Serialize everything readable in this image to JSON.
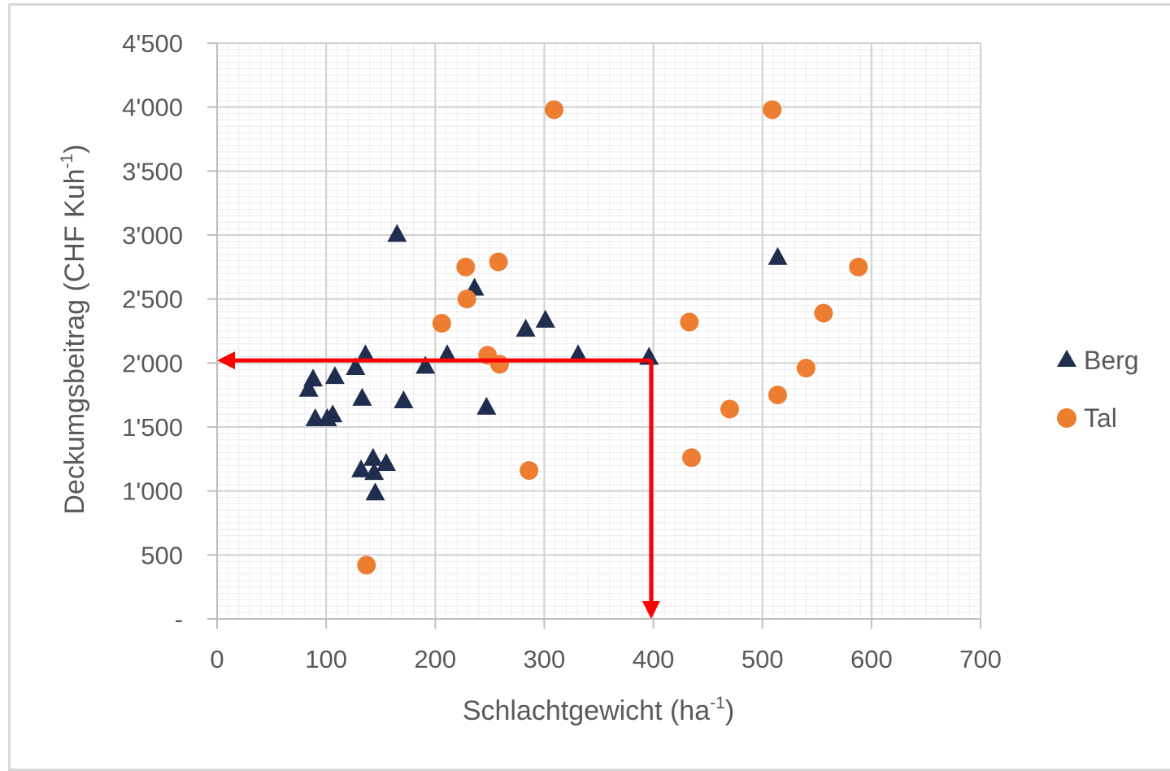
{
  "chart_data": {
    "type": "scatter",
    "xlabel": "Schlachtgewicht (ha",
    "xlabel_sup": "-1",
    "xlabel_end": ")",
    "ylabel": "Deckumgsbeitrag  (CHF Kuh",
    "ylabel_sup": "-1",
    "ylabel_end": ")",
    "xlim": [
      0,
      700
    ],
    "ylim": [
      0,
      4500
    ],
    "x_ticks": [
      {
        "value": 0,
        "label": "0"
      },
      {
        "value": 100,
        "label": "100"
      },
      {
        "value": 200,
        "label": "200"
      },
      {
        "value": 300,
        "label": "300"
      },
      {
        "value": 400,
        "label": "400"
      },
      {
        "value": 500,
        "label": "500"
      },
      {
        "value": 600,
        "label": "600"
      },
      {
        "value": 700,
        "label": "700"
      }
    ],
    "y_ticks": [
      {
        "value": 0,
        "label": "-"
      },
      {
        "value": 500,
        "label": "500"
      },
      {
        "value": 1000,
        "label": "1'000"
      },
      {
        "value": 1500,
        "label": "1'500"
      },
      {
        "value": 2000,
        "label": "2'000"
      },
      {
        "value": 2500,
        "label": "2'500"
      },
      {
        "value": 3000,
        "label": "3'000"
      },
      {
        "value": 3500,
        "label": "3'500"
      },
      {
        "value": 4000,
        "label": "4'000"
      },
      {
        "value": 4500,
        "label": "4'500"
      }
    ],
    "grid": true,
    "minor_grid": true,
    "legend_position": "right",
    "series": [
      {
        "name": "Berg",
        "marker": "triangle",
        "color": "#1f2d4e",
        "points": [
          [
            84,
            1800
          ],
          [
            88,
            1880
          ],
          [
            90,
            1570
          ],
          [
            101,
            1570
          ],
          [
            106,
            1600
          ],
          [
            108,
            1900
          ],
          [
            127,
            1970
          ],
          [
            133,
            1730
          ],
          [
            136,
            2070
          ],
          [
            132,
            1170
          ],
          [
            143,
            1260
          ],
          [
            144,
            1150
          ],
          [
            145,
            990
          ],
          [
            155,
            1220
          ],
          [
            165,
            3010
          ],
          [
            171,
            1710
          ],
          [
            191,
            1980
          ],
          [
            211,
            2070
          ],
          [
            236,
            2590
          ],
          [
            247,
            1660
          ],
          [
            283,
            2270
          ],
          [
            301,
            2340
          ],
          [
            331,
            2070
          ],
          [
            396,
            2050
          ],
          [
            514,
            2830
          ]
        ]
      },
      {
        "name": "Tal",
        "marker": "circle",
        "color": "#ed7d31",
        "points": [
          [
            137,
            420
          ],
          [
            206,
            2310
          ],
          [
            228,
            2750
          ],
          [
            229,
            2500
          ],
          [
            248,
            2060
          ],
          [
            258,
            2790
          ],
          [
            259,
            1990
          ],
          [
            286,
            1160
          ],
          [
            309,
            3980
          ],
          [
            433,
            2320
          ],
          [
            435,
            1260
          ],
          [
            470,
            1640
          ],
          [
            509,
            3980
          ],
          [
            514,
            1750
          ],
          [
            540,
            1960
          ],
          [
            556,
            2390
          ],
          [
            588,
            2750
          ]
        ]
      }
    ],
    "annotations": [
      {
        "type": "arrow",
        "color": "#ff0000",
        "from": [
          398,
          2020
        ],
        "to": [
          0,
          2020
        ]
      },
      {
        "type": "arrow",
        "color": "#ff0000",
        "from": [
          398,
          2020
        ],
        "to": [
          398,
          0
        ]
      }
    ]
  }
}
